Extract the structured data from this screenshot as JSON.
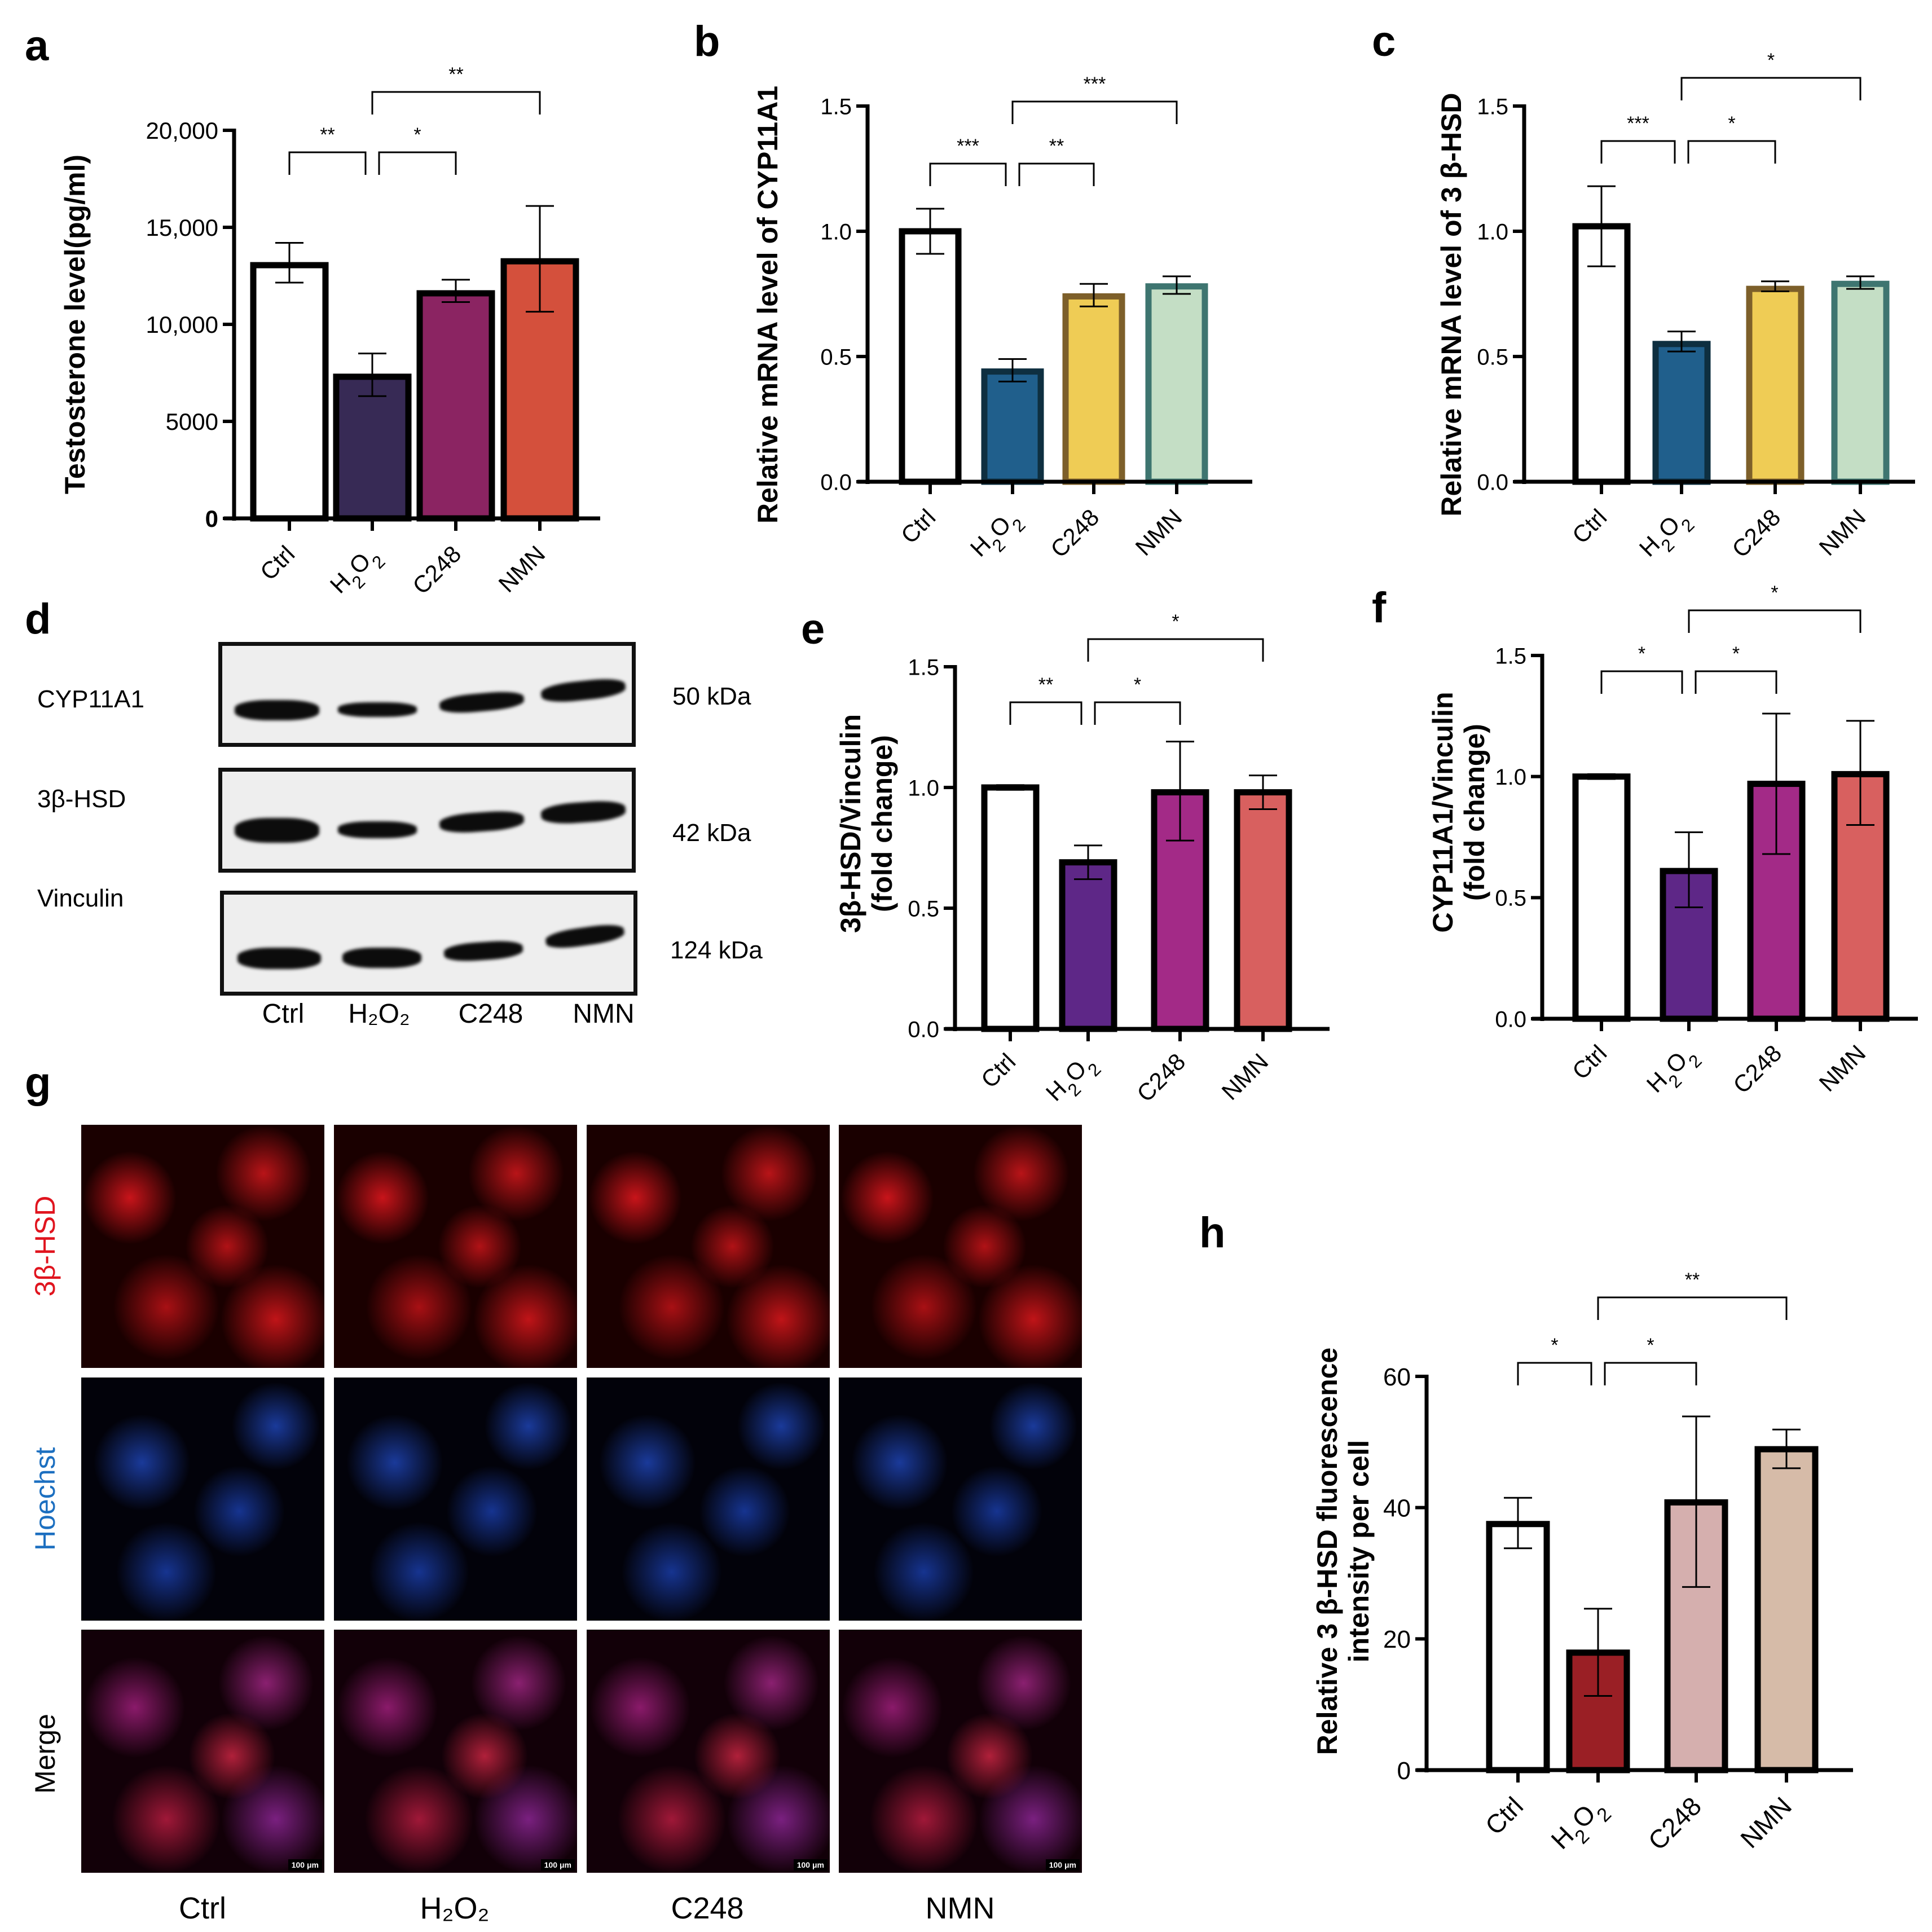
{
  "panels": {
    "a": {
      "letter": "a"
    },
    "b": {
      "letter": "b"
    },
    "c": {
      "letter": "c"
    },
    "d": {
      "letter": "d"
    },
    "e": {
      "letter": "e"
    },
    "f": {
      "letter": "f"
    },
    "g": {
      "letter": "g"
    },
    "h": {
      "letter": "h"
    }
  },
  "western_blot": {
    "rows": [
      {
        "protein": "CYP11A1",
        "kda": "50 kDa"
      },
      {
        "protein": "3β-HSD",
        "kda": "42 kDa"
      },
      {
        "protein": "Vinculin",
        "kda": "124 kDa"
      }
    ],
    "lanes": [
      "Ctrl",
      "H₂O₂",
      "C248",
      "NMN"
    ]
  },
  "immunofluorescence": {
    "row_labels": [
      {
        "text": "3β-HSD",
        "color": "#E0141E"
      },
      {
        "text": "Hoechst",
        "color": "#1C6FC0"
      },
      {
        "text": "Merge",
        "color": "#000000"
      }
    ],
    "columns": [
      "Ctrl",
      "H₂O₂",
      "C248",
      "NMN"
    ],
    "scale_bar": "100 μm"
  },
  "chart_data": [
    {
      "panel": "a",
      "type": "bar",
      "title": "",
      "xlabel": "",
      "ylabel": "Testosterone level(pg/ml)",
      "categories": [
        "Ctrl",
        "H2O2",
        "C248",
        "NMN"
      ],
      "values": [
        13050,
        7300,
        11600,
        13250
      ],
      "error_low": [
        12150,
        6300,
        11150,
        10650
      ],
      "error_high": [
        14200,
        8500,
        12300,
        16100
      ],
      "ylim": [
        0,
        20000
      ],
      "yticks": [
        "0",
        "5000",
        "10,000",
        "15,000",
        "20,000"
      ],
      "ytick_values": [
        0,
        5000,
        10000,
        15000,
        20000
      ],
      "fill_colors": [
        "#FFFFFF",
        "#372A55",
        "#8B2462",
        "#D4503C"
      ],
      "edge_colors": [
        "#000000",
        "#000000",
        "#000000",
        "#000000"
      ],
      "significance": [
        {
          "from": 0,
          "to": 1,
          "label": "**"
        },
        {
          "from": 1,
          "to": 2,
          "label": "*"
        },
        {
          "from": 1,
          "to": 3,
          "label": "**"
        }
      ],
      "grid": false,
      "legend": "none"
    },
    {
      "panel": "b",
      "type": "bar",
      "title": "",
      "xlabel": "",
      "ylabel": "Relative mRNA level of CYP11A1",
      "categories": [
        "Ctrl",
        "H2O2",
        "C248",
        "NMN"
      ],
      "values": [
        1.0,
        0.44,
        0.74,
        0.78
      ],
      "error_low": [
        0.91,
        0.4,
        0.7,
        0.75
      ],
      "error_high": [
        1.09,
        0.49,
        0.79,
        0.82
      ],
      "ylim": [
        0,
        1.5
      ],
      "yticks": [
        "0.0",
        "0.5",
        "1.0",
        "1.5"
      ],
      "ytick_values": [
        0,
        0.5,
        1.0,
        1.5
      ],
      "fill_colors": [
        "#FFFFFF",
        "#205F8C",
        "#EFCC55",
        "#C4DEC5"
      ],
      "edge_colors": [
        "#000000",
        "#0E2F40",
        "#7D5F2A",
        "#3E7570"
      ],
      "significance": [
        {
          "from": 0,
          "to": 1,
          "label": "***"
        },
        {
          "from": 1,
          "to": 2,
          "label": "**"
        },
        {
          "from": 1,
          "to": 3,
          "label": "***"
        }
      ],
      "grid": false,
      "legend": "none"
    },
    {
      "panel": "c",
      "type": "bar",
      "title": "",
      "xlabel": "",
      "ylabel": "Relative mRNA level of 3 β-HSD",
      "categories": [
        "Ctrl",
        "H2O2",
        "C248",
        "NMN"
      ],
      "values": [
        1.02,
        0.55,
        0.77,
        0.79
      ],
      "error_low": [
        0.86,
        0.52,
        0.76,
        0.77
      ],
      "error_high": [
        1.18,
        0.6,
        0.8,
        0.82
      ],
      "ylim": [
        0,
        1.5
      ],
      "yticks": [
        "0.0",
        "0.5",
        "1.0",
        "1.5"
      ],
      "ytick_values": [
        0,
        0.5,
        1.0,
        1.5
      ],
      "fill_colors": [
        "#FFFFFF",
        "#205F8C",
        "#EFCC55",
        "#C4DEC5"
      ],
      "edge_colors": [
        "#000000",
        "#0E2F40",
        "#7D5F2A",
        "#3E7570"
      ],
      "significance": [
        {
          "from": 0,
          "to": 1,
          "label": "***"
        },
        {
          "from": 1,
          "to": 2,
          "label": "*"
        },
        {
          "from": 1,
          "to": 3,
          "label": "*"
        }
      ],
      "grid": false,
      "legend": "none"
    },
    {
      "panel": "e",
      "type": "bar",
      "title": "",
      "xlabel": "",
      "ylabel": "3β-HSD/Vinculin (fold change)",
      "categories": [
        "Ctrl",
        "H2O2",
        "C248",
        "NMN"
      ],
      "values": [
        1.0,
        0.69,
        0.98,
        0.98
      ],
      "error_low": [
        0.99,
        0.62,
        0.78,
        0.91
      ],
      "error_high": [
        1.01,
        0.76,
        1.19,
        1.05
      ],
      "ylim": [
        0,
        1.5
      ],
      "yticks": [
        "0.0",
        "0.5",
        "1.0",
        "1.5"
      ],
      "ytick_values": [
        0,
        0.5,
        1.0,
        1.5
      ],
      "fill_colors": [
        "#FFFFFF",
        "#5E2787",
        "#A32A87",
        "#D8605F"
      ],
      "edge_colors": [
        "#000000",
        "#000000",
        "#000000",
        "#000000"
      ],
      "significance": [
        {
          "from": 0,
          "to": 1,
          "label": "**"
        },
        {
          "from": 1,
          "to": 2,
          "label": "*"
        },
        {
          "from": 1,
          "to": 3,
          "label": "*"
        }
      ],
      "grid": false,
      "legend": "none"
    },
    {
      "panel": "f",
      "type": "bar",
      "title": "",
      "xlabel": "",
      "ylabel": "CYP11A1/Vinculin (fold change)",
      "categories": [
        "Ctrl",
        "H2O2",
        "C248",
        "NMN"
      ],
      "values": [
        1.0,
        0.61,
        0.97,
        1.01
      ],
      "error_low": [
        0.99,
        0.46,
        0.68,
        0.8
      ],
      "error_high": [
        1.01,
        0.77,
        1.26,
        1.23
      ],
      "ylim": [
        0,
        1.5
      ],
      "yticks": [
        "0.0",
        "0.5",
        "1.0",
        "1.5"
      ],
      "ytick_values": [
        0,
        0.5,
        1.0,
        1.5
      ],
      "fill_colors": [
        "#FFFFFF",
        "#5E2787",
        "#A32A87",
        "#D8605F"
      ],
      "edge_colors": [
        "#000000",
        "#000000",
        "#000000",
        "#000000"
      ],
      "significance": [
        {
          "from": 0,
          "to": 1,
          "label": "*"
        },
        {
          "from": 1,
          "to": 2,
          "label": "*"
        },
        {
          "from": 1,
          "to": 3,
          "label": "*"
        }
      ],
      "grid": false,
      "legend": "none"
    },
    {
      "panel": "h",
      "type": "bar",
      "title": "",
      "xlabel": "",
      "ylabel": "Relative 3 β-HSD fluorescence intensity per cell",
      "categories": [
        "Ctrl",
        "H2O2",
        "C248",
        "NMN"
      ],
      "values": [
        37.5,
        17.9,
        40.8,
        48.9
      ],
      "error_low": [
        33.8,
        11.3,
        27.9,
        46.0
      ],
      "error_high": [
        41.5,
        24.6,
        53.9,
        51.9
      ],
      "ylim": [
        0,
        60
      ],
      "yticks": [
        "0",
        "20",
        "40",
        "60"
      ],
      "ytick_values": [
        0,
        20,
        40,
        60
      ],
      "fill_colors": [
        "#FFFFFF",
        "#9A1F25",
        "#D5AFAE",
        "#D6BBA8"
      ],
      "edge_colors": [
        "#000000",
        "#000000",
        "#000000",
        "#000000"
      ],
      "significance": [
        {
          "from": 0,
          "to": 1,
          "label": "*"
        },
        {
          "from": 1,
          "to": 2,
          "label": "*"
        },
        {
          "from": 1,
          "to": 3,
          "label": "**"
        }
      ],
      "grid": false,
      "legend": "none"
    }
  ]
}
